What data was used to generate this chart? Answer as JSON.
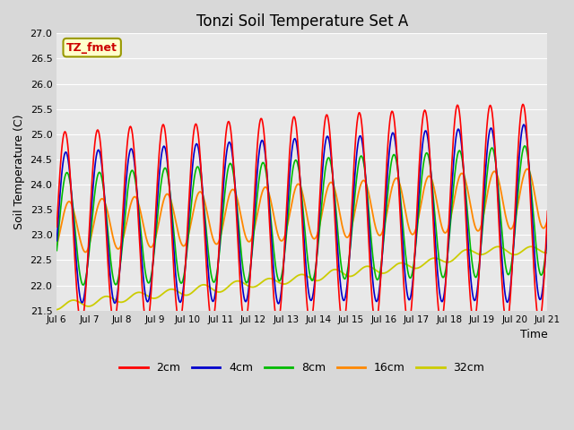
{
  "title": "Tonzi Soil Temperature Set A",
  "xlabel": "Time",
  "ylabel": "Soil Temperature (C)",
  "annotation": "TZ_fmet",
  "ylim": [
    21.5,
    27.0
  ],
  "yticks": [
    21.5,
    22.0,
    22.5,
    23.0,
    23.5,
    24.0,
    24.5,
    25.0,
    25.5,
    26.0,
    26.5,
    27.0
  ],
  "xtick_labels": [
    "Jul 6",
    "Jul 7",
    "Jul 8",
    "Jul 9",
    "Jul 10",
    "Jul 11",
    "Jul 12",
    "Jul 13",
    "Jul 14",
    "Jul 15",
    "Jul 16",
    "Jul 17",
    "Jul 18",
    "Jul 19",
    "Jul 20",
    "Jul 21"
  ],
  "colors": {
    "2cm": "#ff0000",
    "4cm": "#0000cc",
    "8cm": "#00bb00",
    "16cm": "#ff8800",
    "32cm": "#cccc00"
  },
  "bg_color": "#d8d8d8",
  "plot_bg_color": "#e8e8e8",
  "annotation_bg": "#ffffcc",
  "annotation_fg": "#cc0000",
  "annotation_border": "#999900",
  "grid_color": "#ffffff",
  "n_points": 720
}
